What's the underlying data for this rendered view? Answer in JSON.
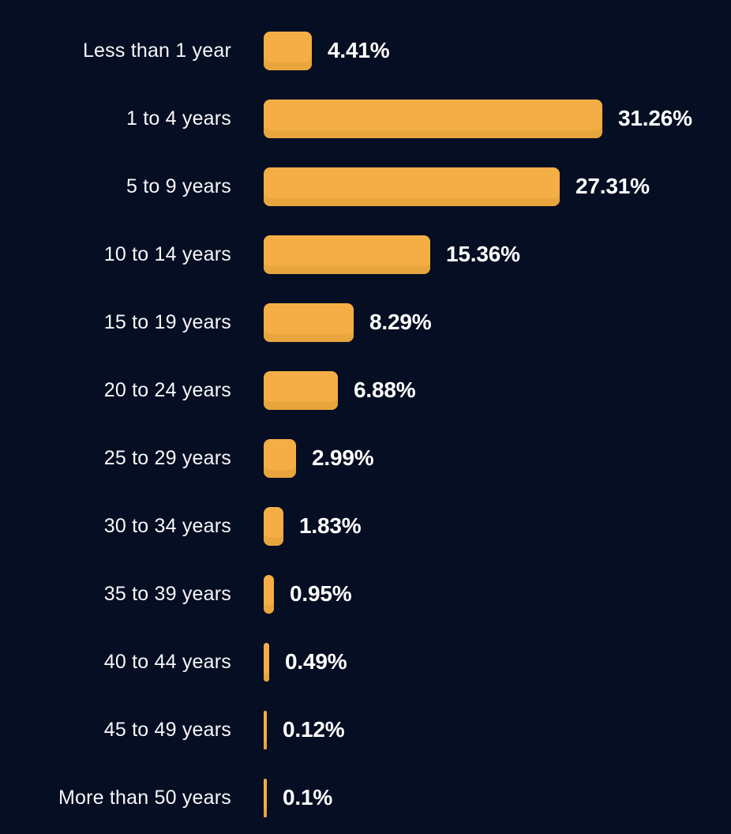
{
  "chart_data": {
    "type": "bar",
    "orientation": "horizontal",
    "title": "",
    "xlabel": "",
    "ylabel": "",
    "categories": [
      "Less than 1 year",
      "1 to 4 years",
      "5 to 9 years",
      "10 to 14 years",
      "15 to 19 years",
      "20 to 24 years",
      "25 to 29 years",
      "30 to 34 years",
      "35 to 39 years",
      "40 to 44 years",
      "45 to 49 years",
      "More than 50 years"
    ],
    "values": [
      4.41,
      31.26,
      27.31,
      15.36,
      8.29,
      6.88,
      2.99,
      1.83,
      0.95,
      0.49,
      0.12,
      0.1
    ],
    "value_labels": [
      "4.41%",
      "31.26%",
      "27.31%",
      "15.36%",
      "8.29%",
      "6.88%",
      "2.99%",
      "1.83%",
      "0.95%",
      "0.49%",
      "0.12%",
      "0.1%"
    ],
    "xlim": [
      0,
      31.26
    ],
    "grid": false,
    "legend": "none",
    "colors": {
      "background": "#060e23",
      "bar_fill": "#f5ae45",
      "bar_bottom_shade": "#e8a53e",
      "category_text": "#f7f7f9",
      "value_text": "#ffffff"
    }
  }
}
